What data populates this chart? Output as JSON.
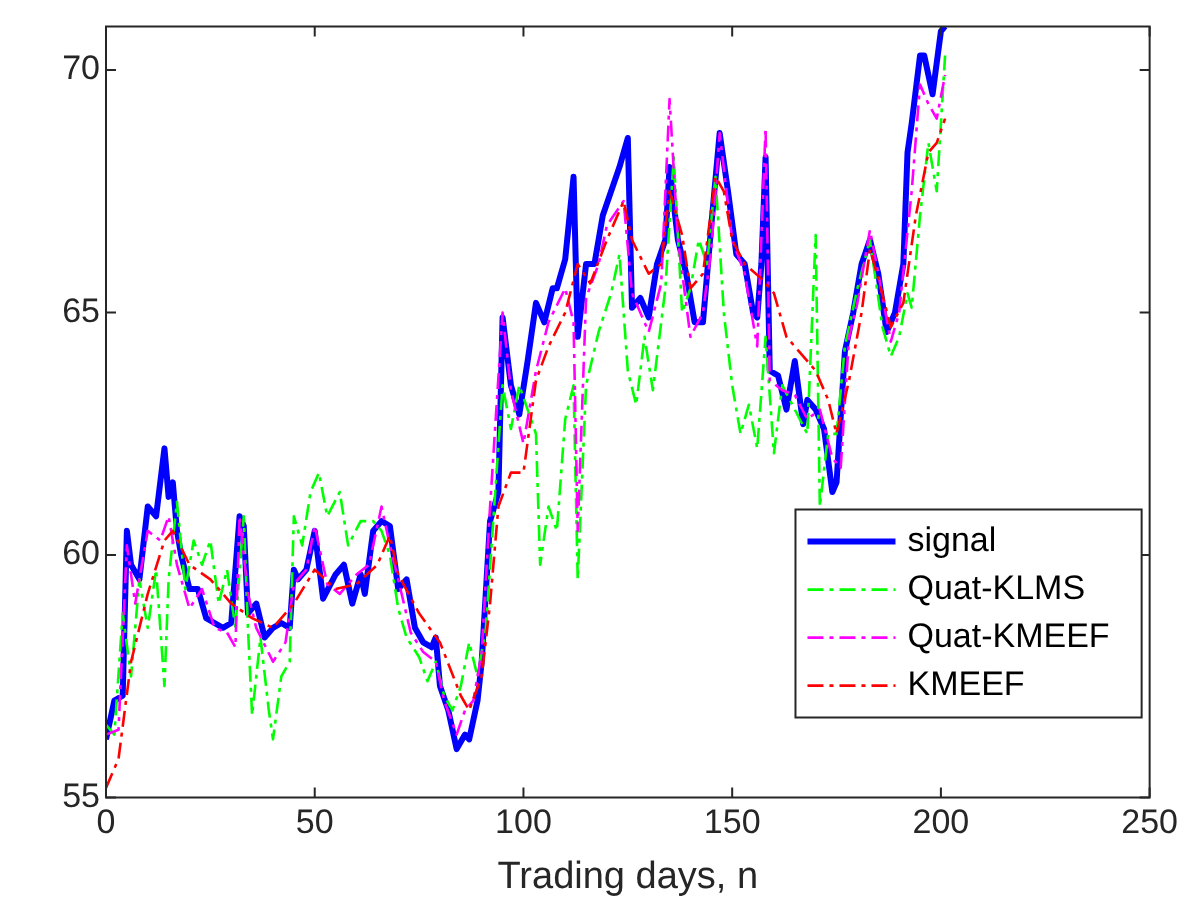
{
  "chart_data": {
    "type": "line",
    "xlabel": "Trading days, n",
    "xlim": [
      0,
      250
    ],
    "xticks": [
      0,
      50,
      100,
      150,
      200,
      250
    ],
    "ylim": [
      55,
      70.9
    ],
    "yticks": [
      55,
      60,
      65,
      70
    ],
    "grid": false,
    "legend": "bottom right",
    "marker": "none",
    "series": [
      {
        "name": "signal",
        "color": "#0000ff",
        "line_style": "solid",
        "x": [
          0,
          2,
          4,
          5,
          6,
          8,
          10,
          12,
          14,
          15,
          16,
          17,
          18,
          20,
          22,
          24,
          26,
          28,
          30,
          32,
          33,
          34,
          36,
          38,
          40,
          42,
          44,
          45,
          46,
          48,
          50,
          52,
          55,
          57,
          59,
          61,
          62,
          64,
          66,
          68,
          70,
          72,
          74,
          76,
          78,
          79,
          80,
          82,
          84,
          86,
          87,
          89,
          90,
          92,
          94,
          95,
          97,
          99,
          101,
          103,
          105,
          107,
          108,
          110,
          112,
          113,
          115,
          117,
          119,
          121,
          123,
          125,
          126,
          128,
          130,
          132,
          134,
          135,
          137,
          139,
          141,
          143,
          145,
          147,
          149,
          151,
          153,
          155,
          156,
          157,
          158,
          159,
          161,
          163,
          165,
          167,
          168,
          170,
          172,
          174,
          175,
          177,
          179,
          181,
          183,
          185,
          187,
          189,
          191,
          192,
          193,
          195,
          196,
          198,
          200,
          201
        ],
        "values": [
          56.2,
          57,
          57.1,
          60.5,
          59.8,
          59.5,
          61,
          60.8,
          62.2,
          61.2,
          61.5,
          60.5,
          60,
          59.3,
          59.3,
          58.7,
          58.6,
          58.5,
          58.6,
          60.8,
          60.6,
          58.8,
          59,
          58.3,
          58.5,
          58.6,
          58.5,
          59.7,
          59.5,
          59.7,
          60.5,
          59.1,
          59.6,
          59.8,
          59,
          59.6,
          59.2,
          60.5,
          60.7,
          60.6,
          59.3,
          59.5,
          58.5,
          58.2,
          58.1,
          58.3,
          57.3,
          56.8,
          56,
          56.3,
          56.2,
          57,
          57.8,
          60.7,
          61.3,
          64.9,
          63.5,
          62.9,
          64,
          65.2,
          64.8,
          65.5,
          65.5,
          66.1,
          67.8,
          64.5,
          66,
          66,
          67,
          67.5,
          68,
          68.6,
          65.1,
          65.3,
          64.9,
          66,
          66.5,
          68,
          66.5,
          65.8,
          64.8,
          64.8,
          66.8,
          68.7,
          67.5,
          66.2,
          66,
          65,
          64.9,
          66,
          68.2,
          63.8,
          63.7,
          63,
          64,
          62.7,
          63.2,
          63,
          62.6,
          61.3,
          61.5,
          64.2,
          65,
          66,
          66.5,
          65.8,
          64.6,
          65,
          66,
          68.3,
          68.9,
          70.3,
          70.3,
          69.5,
          70.8,
          70.9
        ]
      },
      {
        "name": "Quat-KLMS",
        "color": "#00ff00",
        "line_style": "dashed",
        "x": [
          0,
          2,
          4,
          6,
          8,
          10,
          12,
          14,
          15,
          17,
          19,
          21,
          23,
          25,
          27,
          29,
          31,
          33,
          34,
          35,
          37,
          39,
          40,
          42,
          44,
          45,
          47,
          49,
          51,
          53,
          56,
          58,
          61,
          64,
          66,
          68,
          70,
          72,
          75,
          77,
          79,
          81,
          83,
          85,
          87,
          89,
          91,
          93,
          95,
          97,
          99,
          101,
          103,
          104,
          106,
          108,
          110,
          112,
          113,
          115,
          118,
          121,
          123,
          125,
          127,
          129,
          131,
          134,
          136,
          138,
          140,
          142,
          144,
          146,
          148,
          150,
          152,
          154,
          156,
          158,
          160,
          162,
          165,
          168,
          170,
          171,
          173,
          175,
          177,
          180,
          183,
          186,
          188,
          190,
          192,
          193,
          195,
          197,
          199,
          201
        ],
        "values": [
          56.5,
          56.3,
          58.8,
          57.5,
          59.5,
          58.5,
          59.7,
          57.3,
          59.5,
          61.1,
          59.3,
          60.3,
          59.8,
          60.3,
          59,
          59.7,
          58.5,
          60.8,
          58.5,
          56.7,
          58.3,
          56.8,
          56.2,
          57.5,
          57.8,
          60.8,
          60.2,
          61.3,
          61.7,
          60.8,
          61.3,
          60.2,
          60.7,
          60.7,
          60.5,
          60,
          58.9,
          58.3,
          57.9,
          57.4,
          57.8,
          57.1,
          56.8,
          57.3,
          58.2,
          57.5,
          58.5,
          61,
          63.5,
          62.6,
          63.5,
          63,
          62.5,
          59.8,
          61,
          60.5,
          62.8,
          63.5,
          59.5,
          63.5,
          64.6,
          65.4,
          66.2,
          63.8,
          63.1,
          64.5,
          63.4,
          65.5,
          68.2,
          65,
          65.5,
          66.5,
          66,
          67.8,
          65,
          63.5,
          62.5,
          63.1,
          62.2,
          64.5,
          62.1,
          63.5,
          63,
          62.5,
          66.6,
          61,
          62.5,
          62.5,
          64.3,
          65.5,
          66.5,
          64.7,
          64.1,
          64.5,
          65.4,
          65.1,
          67,
          68.5,
          67.5,
          70.3
        ]
      },
      {
        "name": "Quat-KMEEF",
        "color": "#ff00ff",
        "line_style": "dashed",
        "x": [
          0,
          3,
          5,
          7,
          10,
          13,
          15,
          17,
          20,
          23,
          26,
          29,
          31,
          32,
          34,
          36,
          40,
          43,
          45,
          48,
          50,
          53,
          56,
          60,
          63,
          66,
          68,
          70,
          73,
          76,
          79,
          81,
          84,
          86,
          88,
          90,
          92,
          95,
          97,
          100,
          103,
          106,
          110,
          112,
          113,
          115,
          118,
          120,
          124,
          126,
          130,
          133,
          135,
          137,
          140,
          143,
          145,
          147,
          150,
          153,
          156,
          158,
          159,
          162,
          165,
          168,
          171,
          174,
          176,
          178,
          180,
          183,
          185,
          188,
          190,
          193,
          195,
          197,
          199,
          201
        ],
        "values": [
          56.3,
          56.4,
          60.2,
          59,
          60.5,
          60.3,
          60.8,
          59.8,
          58.9,
          59.3,
          58.5,
          58.4,
          58.1,
          60.8,
          59.2,
          58.5,
          57.8,
          58.2,
          59.4,
          59.7,
          60.6,
          59.4,
          59.2,
          59.6,
          59.8,
          61,
          60.2,
          59.5,
          58.4,
          58,
          57.8,
          57,
          56.3,
          56.8,
          57,
          58,
          61,
          65,
          63.4,
          62.3,
          63.8,
          64.8,
          65.5,
          64.8,
          60.5,
          65.3,
          66,
          66.8,
          67.3,
          65.4,
          64.6,
          65.6,
          69.4,
          66.5,
          64.5,
          65,
          66.3,
          68.7,
          66.5,
          65.8,
          64.3,
          68.8,
          63.6,
          63.4,
          63.3,
          62.8,
          63,
          62,
          61.8,
          64.5,
          65.2,
          66.7,
          65.8,
          64.4,
          65,
          67.5,
          69.7,
          69.3,
          69,
          69.9
        ]
      },
      {
        "name": "KMEEF",
        "color": "#ff0000",
        "line_style": "dashed",
        "x": [
          0,
          3,
          6,
          10,
          14,
          16,
          20,
          25,
          30,
          35,
          40,
          45,
          50,
          55,
          60,
          65,
          68,
          70,
          75,
          80,
          85,
          87,
          90,
          92,
          94,
          97,
          100,
          103,
          106,
          110,
          113,
          116,
          120,
          124,
          126,
          130,
          133,
          135,
          138,
          140,
          143,
          146,
          148,
          150,
          153,
          157,
          160,
          163,
          166,
          170,
          173,
          175,
          178,
          181,
          183,
          185,
          188,
          191,
          194,
          197,
          199,
          201
        ],
        "values": [
          55.2,
          55.8,
          57.8,
          59.2,
          60.3,
          60.5,
          59.8,
          59.5,
          59,
          58.7,
          58.5,
          59,
          59.7,
          59.3,
          59.4,
          59.8,
          60.4,
          59.6,
          58.8,
          58.2,
          57.1,
          56.8,
          57.5,
          59,
          61,
          61.7,
          61.7,
          63.6,
          64.3,
          65,
          66,
          65.6,
          66.5,
          67.3,
          66.5,
          65.8,
          66,
          67.5,
          66.6,
          65.5,
          65.8,
          67.8,
          67.5,
          66.5,
          66,
          65.7,
          65.4,
          64.5,
          64.2,
          63.8,
          63.2,
          62.5,
          63.6,
          65,
          66.3,
          65.7,
          64.7,
          65.2,
          67,
          68.3,
          68.5,
          69
        ]
      }
    ]
  }
}
